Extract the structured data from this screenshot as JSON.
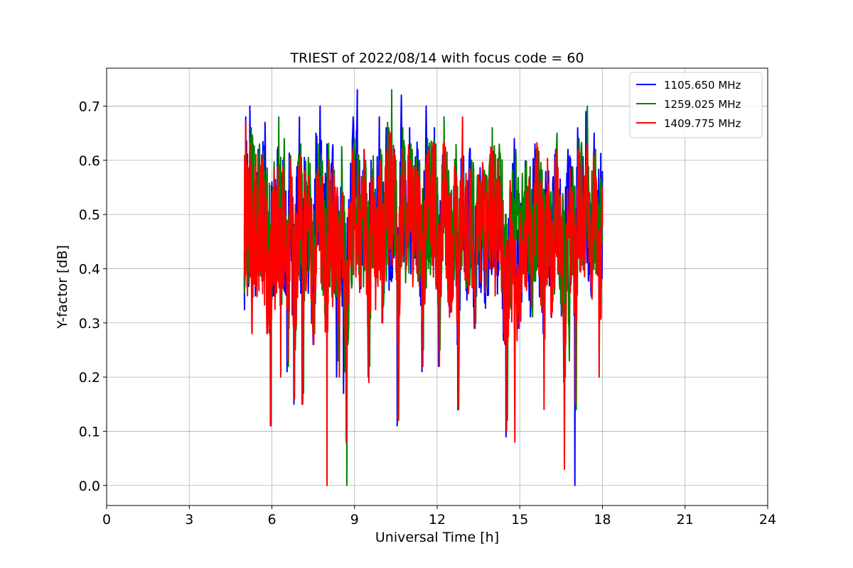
{
  "chart_data": {
    "type": "line",
    "title": "TRIEST of 2022/08/14 with focus code = 60",
    "xlabel": "Universal Time [h]",
    "ylabel": "Y-factor [dB]",
    "xlim": [
      0,
      24
    ],
    "ylim": [
      -0.037,
      0.77
    ],
    "xticks": [
      0,
      3,
      6,
      9,
      12,
      15,
      18,
      21,
      24
    ],
    "yticks": [
      0.0,
      0.1,
      0.2,
      0.3,
      0.4,
      0.5,
      0.6,
      0.7
    ],
    "ytick_labels": [
      "0.0",
      "0.1",
      "0.2",
      "0.3",
      "0.4",
      "0.5",
      "0.6",
      "0.7"
    ],
    "grid": true,
    "legend_position": "top-right",
    "x_range": [
      5.0,
      18.0
    ],
    "series": [
      {
        "name": "1105.650 MHz",
        "color": "#0000ff",
        "points": [
          [
            5.0,
            0.39
          ],
          [
            5.05,
            0.68
          ],
          [
            5.15,
            0.42
          ],
          [
            5.2,
            0.7
          ],
          [
            5.3,
            0.6
          ],
          [
            5.4,
            0.35
          ],
          [
            5.5,
            0.62
          ],
          [
            5.6,
            0.52
          ],
          [
            5.75,
            0.67
          ],
          [
            5.85,
            0.35
          ],
          [
            5.95,
            0.11
          ],
          [
            6.0,
            0.56
          ],
          [
            6.1,
            0.35
          ],
          [
            6.2,
            0.62
          ],
          [
            6.3,
            0.4
          ],
          [
            6.4,
            0.6
          ],
          [
            6.55,
            0.21
          ],
          [
            6.65,
            0.59
          ],
          [
            6.8,
            0.15
          ],
          [
            6.9,
            0.5
          ],
          [
            7.0,
            0.68
          ],
          [
            7.1,
            0.15
          ],
          [
            7.2,
            0.58
          ],
          [
            7.35,
            0.48
          ],
          [
            7.5,
            0.26
          ],
          [
            7.6,
            0.65
          ],
          [
            7.75,
            0.7
          ],
          [
            7.9,
            0.36
          ],
          [
            8.0,
            0.63
          ],
          [
            8.1,
            0.4
          ],
          [
            8.2,
            0.62
          ],
          [
            8.35,
            0.2
          ],
          [
            8.5,
            0.55
          ],
          [
            8.6,
            0.17
          ],
          [
            8.7,
            0.09
          ],
          [
            8.8,
            0.44
          ],
          [
            8.95,
            0.68
          ],
          [
            9.1,
            0.73
          ],
          [
            9.2,
            0.42
          ],
          [
            9.35,
            0.62
          ],
          [
            9.5,
            0.2
          ],
          [
            9.6,
            0.6
          ],
          [
            9.75,
            0.42
          ],
          [
            9.9,
            0.68
          ],
          [
            10.0,
            0.3
          ],
          [
            10.15,
            0.66
          ],
          [
            10.3,
            0.38
          ],
          [
            10.45,
            0.62
          ],
          [
            10.55,
            0.11
          ],
          [
            10.7,
            0.72
          ],
          [
            10.85,
            0.5
          ],
          [
            11.0,
            0.66
          ],
          [
            11.15,
            0.44
          ],
          [
            11.3,
            0.62
          ],
          [
            11.45,
            0.21
          ],
          [
            11.6,
            0.7
          ],
          [
            11.75,
            0.56
          ],
          [
            11.9,
            0.66
          ],
          [
            12.05,
            0.22
          ],
          [
            12.2,
            0.61
          ],
          [
            12.35,
            0.45
          ],
          [
            12.5,
            0.32
          ],
          [
            12.65,
            0.54
          ],
          [
            12.75,
            0.14
          ],
          [
            12.9,
            0.6
          ],
          [
            13.05,
            0.36
          ],
          [
            13.2,
            0.62
          ],
          [
            13.35,
            0.29
          ],
          [
            13.5,
            0.53
          ],
          [
            13.65,
            0.46
          ],
          [
            13.8,
            0.4
          ],
          [
            13.95,
            0.62
          ],
          [
            14.1,
            0.44
          ],
          [
            14.25,
            0.53
          ],
          [
            14.4,
            0.28
          ],
          [
            14.5,
            0.09
          ],
          [
            14.65,
            0.43
          ],
          [
            14.8,
            0.64
          ],
          [
            14.95,
            0.29
          ],
          [
            15.1,
            0.45
          ],
          [
            15.25,
            0.52
          ],
          [
            15.4,
            0.33
          ],
          [
            15.55,
            0.63
          ],
          [
            15.7,
            0.51
          ],
          [
            15.85,
            0.28
          ],
          [
            16.0,
            0.56
          ],
          [
            16.15,
            0.31
          ],
          [
            16.3,
            0.62
          ],
          [
            16.45,
            0.4
          ],
          [
            16.6,
            0.19
          ],
          [
            16.75,
            0.62
          ],
          [
            16.9,
            0.51
          ],
          [
            17.0,
            0.0
          ],
          [
            17.1,
            0.66
          ],
          [
            17.25,
            0.51
          ],
          [
            17.4,
            0.69
          ],
          [
            17.55,
            0.39
          ],
          [
            17.7,
            0.65
          ],
          [
            17.85,
            0.43
          ],
          [
            18.0,
            0.58
          ]
        ]
      },
      {
        "name": "1259.025 MHz",
        "color": "#008000",
        "points": [
          [
            5.0,
            0.43
          ],
          [
            5.05,
            0.62
          ],
          [
            5.15,
            0.45
          ],
          [
            5.25,
            0.66
          ],
          [
            5.35,
            0.58
          ],
          [
            5.45,
            0.37
          ],
          [
            5.55,
            0.63
          ],
          [
            5.65,
            0.5
          ],
          [
            5.8,
            0.57
          ],
          [
            5.9,
            0.4
          ],
          [
            5.97,
            0.11
          ],
          [
            6.05,
            0.55
          ],
          [
            6.15,
            0.38
          ],
          [
            6.25,
            0.68
          ],
          [
            6.35,
            0.42
          ],
          [
            6.45,
            0.64
          ],
          [
            6.6,
            0.22
          ],
          [
            6.7,
            0.57
          ],
          [
            6.85,
            0.25
          ],
          [
            6.95,
            0.48
          ],
          [
            7.05,
            0.63
          ],
          [
            7.15,
            0.17
          ],
          [
            7.25,
            0.56
          ],
          [
            7.4,
            0.5
          ],
          [
            7.55,
            0.28
          ],
          [
            7.7,
            0.63
          ],
          [
            7.85,
            0.48
          ],
          [
            7.95,
            0.37
          ],
          [
            8.05,
            0.61
          ],
          [
            8.15,
            0.43
          ],
          [
            8.25,
            0.56
          ],
          [
            8.4,
            0.23
          ],
          [
            8.55,
            0.58
          ],
          [
            8.65,
            0.21
          ],
          [
            8.72,
            0.0
          ],
          [
            8.85,
            0.46
          ],
          [
            9.0,
            0.64
          ],
          [
            9.15,
            0.61
          ],
          [
            9.25,
            0.44
          ],
          [
            9.4,
            0.6
          ],
          [
            9.55,
            0.22
          ],
          [
            9.65,
            0.58
          ],
          [
            9.8,
            0.43
          ],
          [
            9.95,
            0.62
          ],
          [
            10.05,
            0.33
          ],
          [
            10.2,
            0.67
          ],
          [
            10.35,
            0.73
          ],
          [
            10.5,
            0.6
          ],
          [
            10.6,
            0.12
          ],
          [
            10.75,
            0.66
          ],
          [
            10.9,
            0.52
          ],
          [
            11.05,
            0.63
          ],
          [
            11.2,
            0.47
          ],
          [
            11.35,
            0.6
          ],
          [
            11.5,
            0.25
          ],
          [
            11.65,
            0.64
          ],
          [
            11.8,
            0.58
          ],
          [
            11.95,
            0.63
          ],
          [
            12.1,
            0.25
          ],
          [
            12.25,
            0.68
          ],
          [
            12.4,
            0.47
          ],
          [
            12.55,
            0.34
          ],
          [
            12.7,
            0.58
          ],
          [
            12.78,
            0.14
          ],
          [
            12.95,
            0.58
          ],
          [
            13.1,
            0.4
          ],
          [
            13.25,
            0.6
          ],
          [
            13.4,
            0.3
          ],
          [
            13.55,
            0.56
          ],
          [
            13.7,
            0.49
          ],
          [
            13.85,
            0.42
          ],
          [
            14.0,
            0.66
          ],
          [
            14.15,
            0.48
          ],
          [
            14.3,
            0.6
          ],
          [
            14.45,
            0.3
          ],
          [
            14.55,
            0.12
          ],
          [
            14.7,
            0.46
          ],
          [
            14.85,
            0.62
          ],
          [
            15.0,
            0.31
          ],
          [
            15.15,
            0.47
          ],
          [
            15.3,
            0.55
          ],
          [
            15.45,
            0.35
          ],
          [
            15.6,
            0.62
          ],
          [
            15.75,
            0.53
          ],
          [
            15.9,
            0.31
          ],
          [
            16.05,
            0.55
          ],
          [
            16.2,
            0.34
          ],
          [
            16.35,
            0.65
          ],
          [
            16.5,
            0.42
          ],
          [
            16.65,
            0.2
          ],
          [
            16.8,
            0.23
          ],
          [
            16.95,
            0.55
          ],
          [
            17.05,
            0.14
          ],
          [
            17.15,
            0.64
          ],
          [
            17.3,
            0.53
          ],
          [
            17.45,
            0.7
          ],
          [
            17.6,
            0.41
          ],
          [
            17.75,
            0.62
          ],
          [
            17.9,
            0.45
          ],
          [
            18.0,
            0.46
          ]
        ]
      },
      {
        "name": "1409.775 MHz",
        "color": "#ff0000",
        "points": [
          [
            5.0,
            0.48
          ],
          [
            5.05,
            0.67
          ],
          [
            5.12,
            0.44
          ],
          [
            5.2,
            0.63
          ],
          [
            5.28,
            0.28
          ],
          [
            5.38,
            0.56
          ],
          [
            5.48,
            0.42
          ],
          [
            5.58,
            0.59
          ],
          [
            5.7,
            0.47
          ],
          [
            5.82,
            0.28
          ],
          [
            5.96,
            0.11
          ],
          [
            6.03,
            0.53
          ],
          [
            6.12,
            0.35
          ],
          [
            6.22,
            0.55
          ],
          [
            6.32,
            0.2
          ],
          [
            6.42,
            0.58
          ],
          [
            6.58,
            0.23
          ],
          [
            6.68,
            0.55
          ],
          [
            6.82,
            0.16
          ],
          [
            6.92,
            0.45
          ],
          [
            7.02,
            0.6
          ],
          [
            7.12,
            0.15
          ],
          [
            7.22,
            0.52
          ],
          [
            7.38,
            0.45
          ],
          [
            7.52,
            0.26
          ],
          [
            7.65,
            0.58
          ],
          [
            7.8,
            0.44
          ],
          [
            7.92,
            0.34
          ],
          [
            8.0,
            0.0
          ],
          [
            8.08,
            0.58
          ],
          [
            8.18,
            0.41
          ],
          [
            8.3,
            0.55
          ],
          [
            8.45,
            0.2
          ],
          [
            8.58,
            0.54
          ],
          [
            8.7,
            0.08
          ],
          [
            8.82,
            0.44
          ],
          [
            8.98,
            0.6
          ],
          [
            9.12,
            0.58
          ],
          [
            9.22,
            0.41
          ],
          [
            9.38,
            0.56
          ],
          [
            9.52,
            0.19
          ],
          [
            9.62,
            0.55
          ],
          [
            9.78,
            0.41
          ],
          [
            9.92,
            0.6
          ],
          [
            10.02,
            0.3
          ],
          [
            10.18,
            0.62
          ],
          [
            10.32,
            0.65
          ],
          [
            10.48,
            0.57
          ],
          [
            10.58,
            0.12
          ],
          [
            10.72,
            0.62
          ],
          [
            10.88,
            0.49
          ],
          [
            11.02,
            0.6
          ],
          [
            11.18,
            0.44
          ],
          [
            11.32,
            0.57
          ],
          [
            11.48,
            0.22
          ],
          [
            11.62,
            0.61
          ],
          [
            11.78,
            0.55
          ],
          [
            11.92,
            0.6
          ],
          [
            12.08,
            0.22
          ],
          [
            12.22,
            0.63
          ],
          [
            12.38,
            0.45
          ],
          [
            12.52,
            0.32
          ],
          [
            12.68,
            0.56
          ],
          [
            12.76,
            0.14
          ],
          [
            12.92,
            0.68
          ],
          [
            13.08,
            0.38
          ],
          [
            13.22,
            0.58
          ],
          [
            13.38,
            0.29
          ],
          [
            13.52,
            0.53
          ],
          [
            13.68,
            0.46
          ],
          [
            13.82,
            0.4
          ],
          [
            13.98,
            0.62
          ],
          [
            14.12,
            0.45
          ],
          [
            14.28,
            0.56
          ],
          [
            14.42,
            0.28
          ],
          [
            14.52,
            0.1
          ],
          [
            14.68,
            0.43
          ],
          [
            14.82,
            0.08
          ],
          [
            14.98,
            0.29
          ],
          [
            15.12,
            0.45
          ],
          [
            15.28,
            0.52
          ],
          [
            15.42,
            0.33
          ],
          [
            15.58,
            0.6
          ],
          [
            15.72,
            0.5
          ],
          [
            15.88,
            0.14
          ],
          [
            16.02,
            0.52
          ],
          [
            16.18,
            0.32
          ],
          [
            16.32,
            0.62
          ],
          [
            16.48,
            0.4
          ],
          [
            16.62,
            0.03
          ],
          [
            16.78,
            0.5
          ],
          [
            16.92,
            0.53
          ],
          [
            17.02,
            0.15
          ],
          [
            17.12,
            0.62
          ],
          [
            17.28,
            0.5
          ],
          [
            17.42,
            0.6
          ],
          [
            17.58,
            0.39
          ],
          [
            17.72,
            0.58
          ],
          [
            17.88,
            0.2
          ],
          [
            18.0,
            0.48
          ]
        ]
      }
    ]
  }
}
